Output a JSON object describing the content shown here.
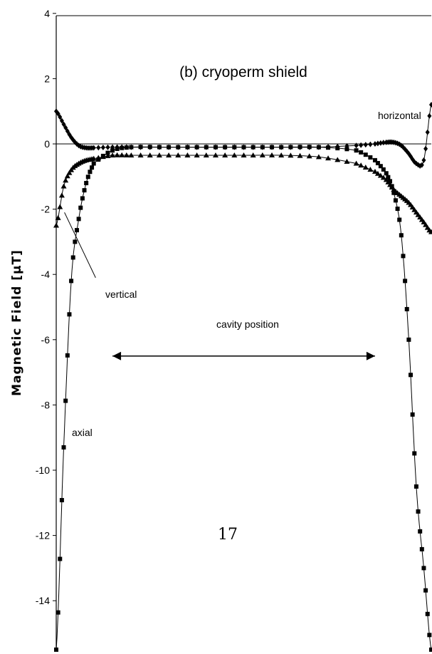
{
  "page_number": "17",
  "chart_data": {
    "type": "line",
    "title": "(b) cryoperm shield",
    "ylabel": "Magnetic Field [µT]",
    "xlabel": "",
    "ylim": [
      -15.5,
      4
    ],
    "xlim": [
      0,
      100
    ],
    "yticks": [
      "4",
      "2",
      "0",
      "-2",
      "-4",
      "-6",
      "-8",
      "-10",
      "-12",
      "-14"
    ],
    "grid": false,
    "zero_line": true,
    "x": [
      0,
      2,
      4,
      6,
      8,
      10,
      15,
      20,
      30,
      40,
      50,
      60,
      70,
      80,
      85,
      88,
      90,
      92,
      94,
      96,
      98,
      100
    ],
    "series": [
      {
        "name": "horizontal",
        "marker": "diamond",
        "values": [
          1.0,
          0.6,
          0.2,
          -0.05,
          -0.12,
          -0.12,
          -0.1,
          -0.1,
          -0.1,
          -0.1,
          -0.1,
          -0.1,
          -0.1,
          -0.05,
          0.0,
          0.05,
          0.05,
          -0.05,
          -0.3,
          -0.6,
          -0.5,
          1.2
        ]
      },
      {
        "name": "axial",
        "marker": "square",
        "values": [
          -15.5,
          -9.3,
          -4.2,
          -2.3,
          -1.2,
          -0.6,
          -0.2,
          -0.1,
          -0.1,
          -0.1,
          -0.1,
          -0.1,
          -0.1,
          -0.2,
          -0.5,
          -0.9,
          -1.5,
          -2.8,
          -6.0,
          -10.5,
          -13.0,
          -15.5
        ]
      },
      {
        "name": "vertical",
        "marker": "triangle",
        "values": [
          -2.5,
          -1.3,
          -0.8,
          -0.6,
          -0.5,
          -0.45,
          -0.35,
          -0.35,
          -0.35,
          -0.35,
          -0.35,
          -0.35,
          -0.4,
          -0.6,
          -0.85,
          -1.1,
          -1.4,
          -1.6,
          -1.8,
          -2.1,
          -2.4,
          -2.7
        ]
      }
    ],
    "annotations": {
      "vertical_label": "vertical",
      "axial_label": "axial",
      "horizontal_label": "horizontal",
      "cavity_label": "cavity position",
      "cavity_arrow_x": [
        15,
        85
      ],
      "cavity_arrow_y": -6.5
    }
  }
}
